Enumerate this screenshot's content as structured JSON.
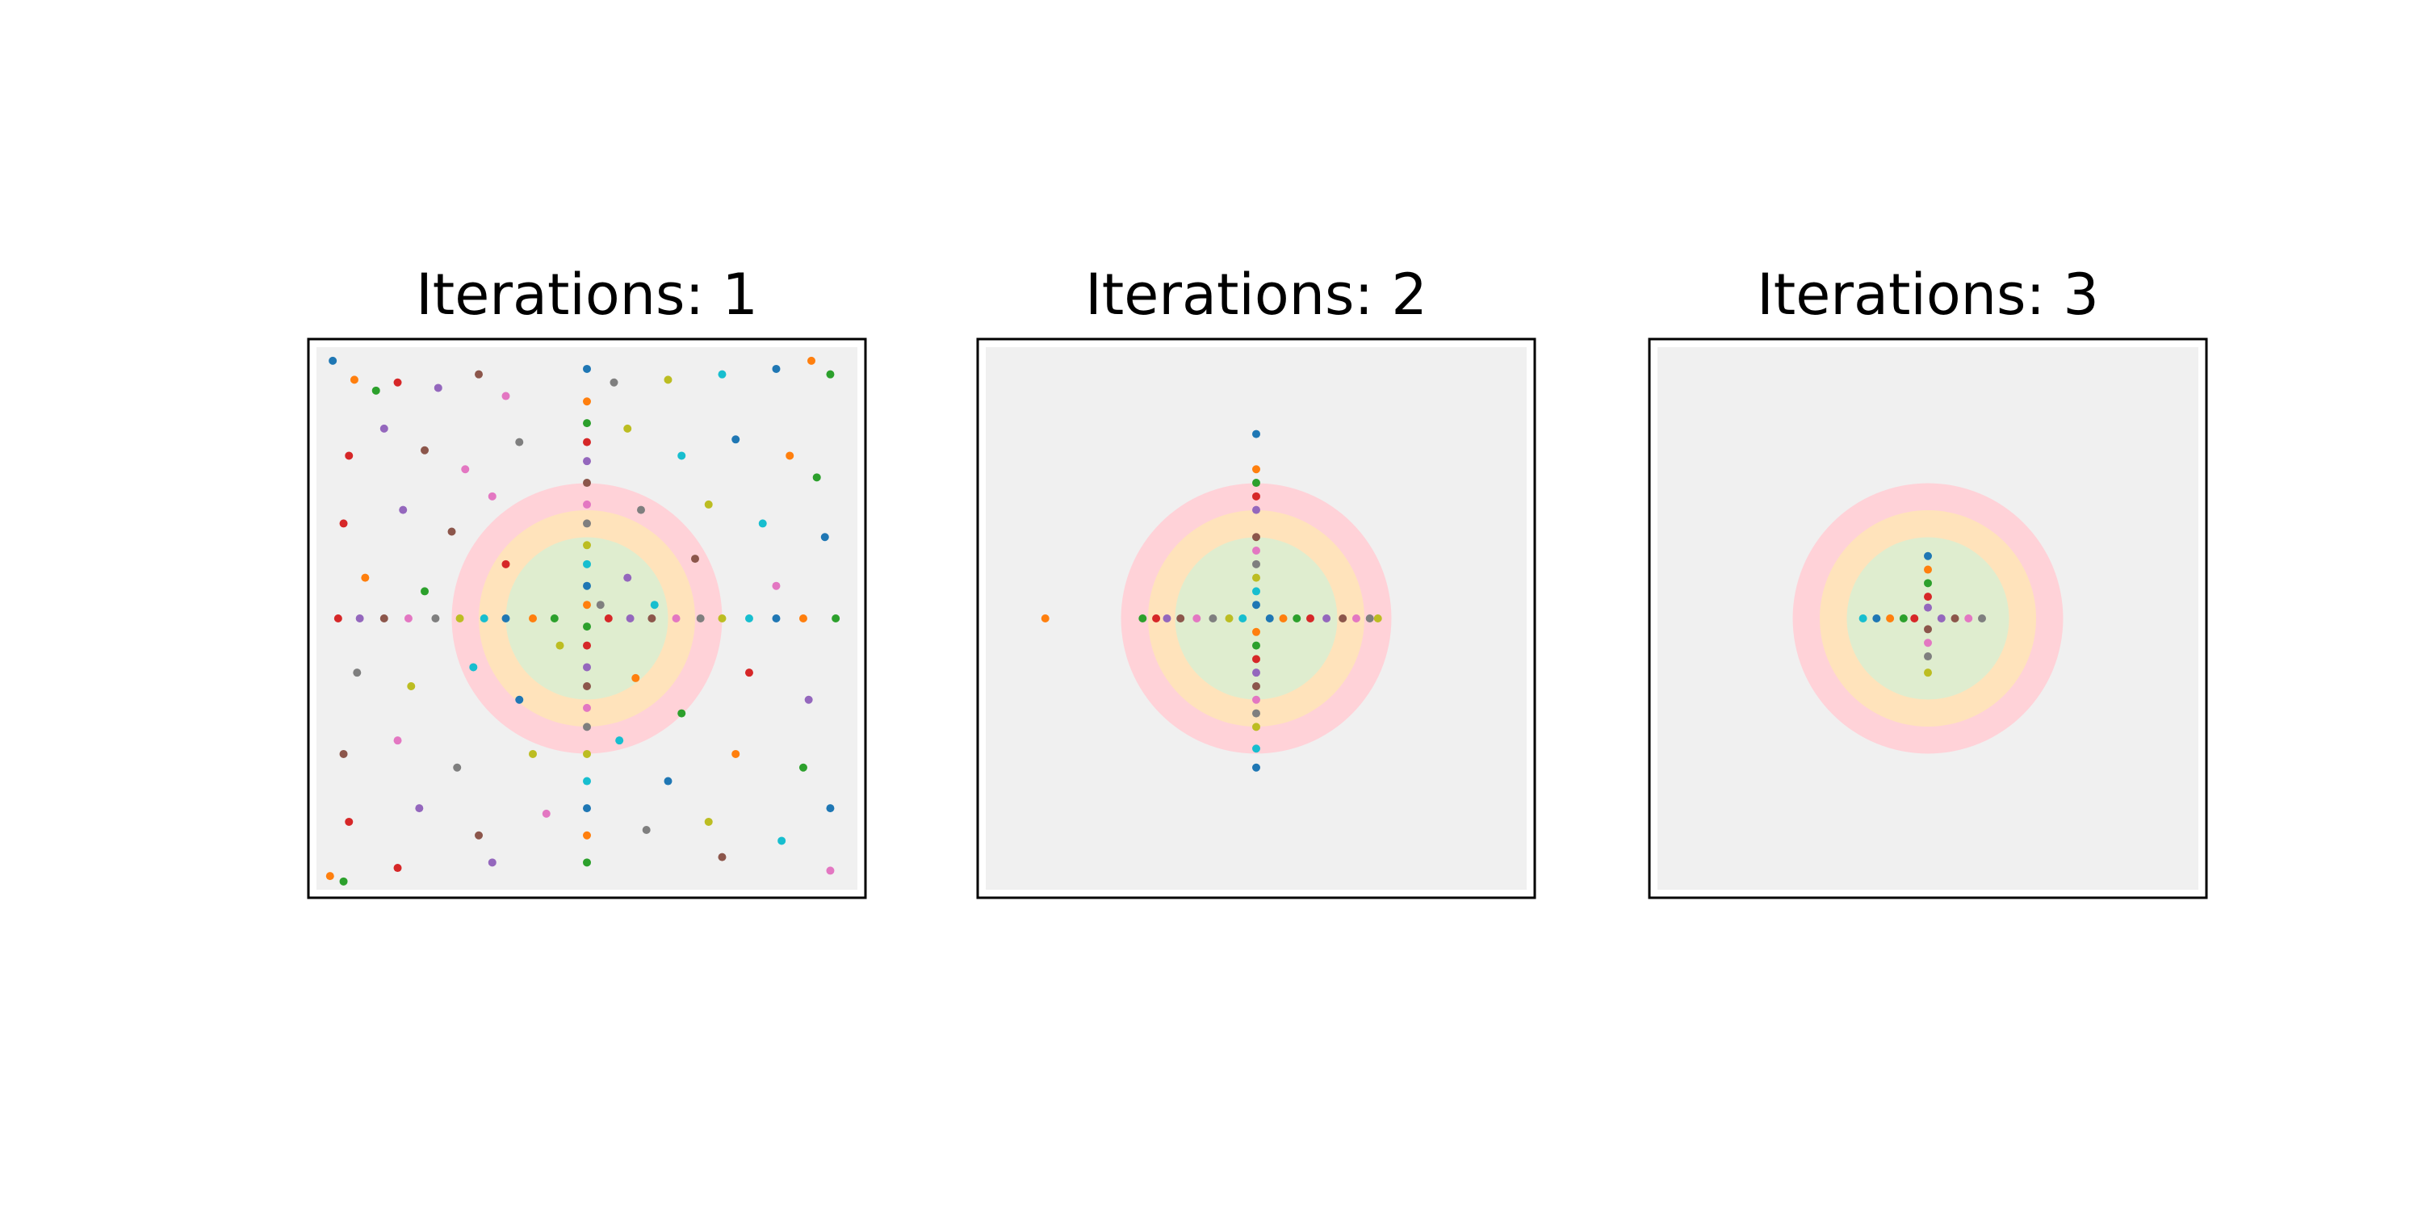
{
  "chart_data": [
    {
      "type": "scatter",
      "title": "Iterations: 1",
      "xlim": [
        -1.03,
        1.03
      ],
      "ylim": [
        -1.03,
        1.03
      ],
      "colors": [
        "#1f77b4",
        "#ff7f0e",
        "#2ca02c",
        "#d62728",
        "#9467bd",
        "#8c564b",
        "#e377c2",
        "#7f7f7f",
        "#bcbd22",
        "#17becf"
      ],
      "circles": [
        {
          "radius": 0.5,
          "color": "#ffd2d8"
        },
        {
          "radius": 0.4,
          "color": "#ffe3bb"
        },
        {
          "radius": 0.3,
          "color": "#dfedcf"
        }
      ],
      "x": [
        -0.94,
        -0.86,
        -0.78,
        -0.7,
        -0.55,
        -0.4,
        -0.3,
        0.1,
        0.3,
        0.5,
        0.7,
        0.83,
        0.9,
        -0.88,
        -0.75,
        -0.6,
        -0.45,
        -0.25,
        0.15,
        0.35,
        0.55,
        0.75,
        0.85,
        -0.9,
        -0.68,
        -0.5,
        -0.35,
        0.2,
        0.45,
        0.65,
        0.88,
        -0.82,
        -0.6,
        -0.3,
        0.15,
        0.4,
        0.7,
        -0.85,
        -0.65,
        -0.42,
        -0.25,
        0.18,
        0.35,
        0.6,
        0.82,
        -0.9,
        -0.7,
        -0.48,
        -0.2,
        0.12,
        0.3,
        0.55,
        0.8,
        -0.88,
        -0.62,
        -0.4,
        -0.15,
        0.22,
        0.45,
        0.72,
        0.9,
        -0.95,
        -0.9,
        -0.7,
        -0.35,
        0.5,
        0.9,
        0.05,
        -0.1,
        0.25,
        0,
        0,
        0,
        0,
        0,
        0,
        0,
        0,
        0,
        0,
        0,
        0,
        0,
        0,
        0,
        0,
        0,
        0,
        0,
        0,
        0,
        0,
        0,
        -0.92,
        -0.84,
        -0.75,
        -0.66,
        -0.56,
        -0.47,
        -0.38,
        -0.3,
        -0.2,
        -0.12,
        0.08,
        0.16,
        0.24,
        0.33,
        0.42,
        0.5,
        0.6,
        0.7,
        0.8,
        0.92
      ],
      "y": [
        0.95,
        0.88,
        0.84,
        0.87,
        0.85,
        0.9,
        0.82,
        0.87,
        0.88,
        0.9,
        0.92,
        0.95,
        0.9,
        0.6,
        0.7,
        0.62,
        0.55,
        0.65,
        0.7,
        0.6,
        0.66,
        0.6,
        0.52,
        0.35,
        0.4,
        0.32,
        0.45,
        0.4,
        0.42,
        0.35,
        0.3,
        0.15,
        0.1,
        0.2,
        0.15,
        0.22,
        0.12,
        -0.2,
        -0.25,
        -0.18,
        -0.3,
        -0.22,
        -0.35,
        -0.2,
        -0.3,
        -0.5,
        -0.45,
        -0.55,
        -0.5,
        -0.45,
        -0.6,
        -0.5,
        -0.55,
        -0.75,
        -0.7,
        -0.8,
        -0.72,
        -0.78,
        -0.75,
        -0.82,
        -0.7,
        -0.95,
        -0.97,
        -0.92,
        -0.9,
        -0.88,
        -0.93,
        0.05,
        -0.1,
        0.05,
        0.92,
        0.8,
        0.72,
        0.65,
        0.58,
        0.5,
        0.42,
        0.35,
        0.27,
        0.2,
        0.12,
        0.05,
        -0.03,
        -0.1,
        -0.18,
        -0.25,
        -0.33,
        -0.4,
        -0.5,
        -0.6,
        -0.7,
        -0.8,
        -0.9,
        0,
        0,
        0,
        0,
        0,
        0,
        0,
        0,
        0,
        0,
        0,
        0,
        0,
        0,
        0,
        0,
        0,
        0,
        0,
        0
      ]
    },
    {
      "type": "scatter",
      "title": "Iterations: 2",
      "xlim": [
        -1.03,
        1.03
      ],
      "ylim": [
        -1.03,
        1.03
      ],
      "colors": [
        "#1f77b4",
        "#ff7f0e",
        "#2ca02c",
        "#d62728",
        "#9467bd",
        "#8c564b",
        "#e377c2",
        "#7f7f7f",
        "#bcbd22",
        "#17becf"
      ],
      "circles": [
        {
          "radius": 0.5,
          "color": "#ffd2d8"
        },
        {
          "radius": 0.4,
          "color": "#ffe3bb"
        },
        {
          "radius": 0.3,
          "color": "#dfedcf"
        }
      ],
      "x": [
        0,
        0,
        0,
        0,
        0,
        0,
        0,
        0,
        0,
        0,
        0,
        0,
        0,
        0,
        0,
        0,
        0,
        0,
        0,
        0,
        0,
        -0.78,
        -0.42,
        -0.37,
        -0.33,
        -0.28,
        -0.22,
        -0.16,
        -0.1,
        -0.05,
        0.05,
        0.1,
        0.15,
        0.2,
        0.26,
        0.32,
        0.37,
        0.42,
        0.45
      ],
      "y": [
        0.68,
        0.55,
        0.5,
        0.45,
        0.4,
        0.3,
        0.25,
        0.2,
        0.15,
        0.1,
        0.05,
        -0.05,
        -0.1,
        -0.15,
        -0.2,
        -0.25,
        -0.3,
        -0.35,
        -0.4,
        -0.48,
        -0.55,
        0,
        0,
        0,
        0,
        0,
        0,
        0,
        0,
        0,
        0,
        0,
        0,
        0,
        0,
        0,
        0,
        0,
        0
      ]
    },
    {
      "type": "scatter",
      "title": "Iterations: 3",
      "xlim": [
        -1.03,
        1.03
      ],
      "ylim": [
        -1.03,
        1.03
      ],
      "colors": [
        "#1f77b4",
        "#ff7f0e",
        "#2ca02c",
        "#d62728",
        "#9467bd",
        "#8c564b",
        "#e377c2",
        "#7f7f7f",
        "#bcbd22",
        "#17becf"
      ],
      "circles": [
        {
          "radius": 0.5,
          "color": "#ffd2d8"
        },
        {
          "radius": 0.4,
          "color": "#ffe3bb"
        },
        {
          "radius": 0.3,
          "color": "#dfedcf"
        }
      ],
      "x": [
        0,
        0,
        0,
        0,
        0,
        0,
        0,
        0,
        0,
        -0.24,
        -0.19,
        -0.14,
        -0.09,
        -0.05,
        0.05,
        0.1,
        0.15,
        0.2
      ],
      "y": [
        0.23,
        0.18,
        0.13,
        0.08,
        0.04,
        -0.04,
        -0.09,
        -0.14,
        -0.2,
        0,
        0,
        0,
        0,
        0,
        0,
        0,
        0,
        0
      ]
    }
  ]
}
